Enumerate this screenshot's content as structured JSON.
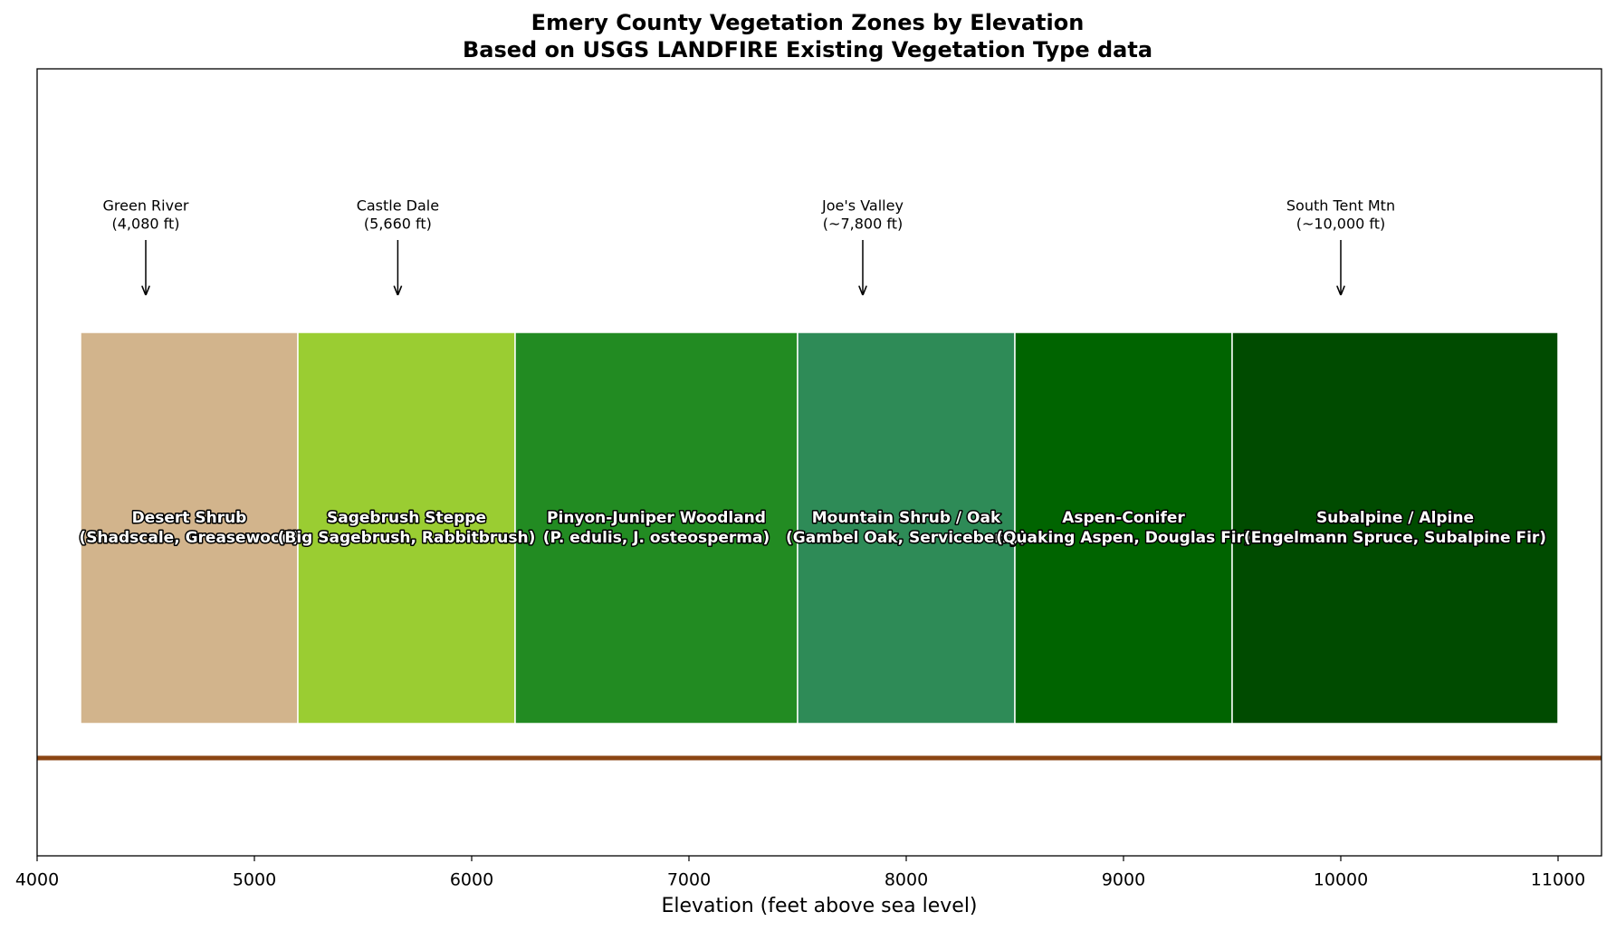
{
  "chart_data": {
    "type": "span",
    "title": "Emery County Vegetation Zones by Elevation",
    "subtitle": "Based on USGS LANDFIRE Existing Vegetation Type data",
    "x_label": "Elevation (feet above sea level)",
    "xlim": [
      4000,
      11200
    ],
    "xticks": [
      4000,
      5000,
      6000,
      7000,
      8000,
      9000,
      10000,
      11000
    ],
    "zones": [
      {
        "name": "Desert Shrub",
        "species": "(Shadscale, Greasewood)",
        "start": 4200,
        "end": 5200,
        "color": "#d2b48c"
      },
      {
        "name": "Sagebrush Steppe",
        "species": "(Big Sagebrush, Rabbitbrush)",
        "start": 5200,
        "end": 6200,
        "color": "#9acd32"
      },
      {
        "name": "Pinyon-Juniper Woodland",
        "species": "(P. edulis, J. osteosperma)",
        "start": 6200,
        "end": 7500,
        "color": "#228b22"
      },
      {
        "name": "Mountain Shrub / Oak",
        "species": "(Gambel Oak, Serviceberry)",
        "start": 7500,
        "end": 8500,
        "color": "#2e8b57"
      },
      {
        "name": "Aspen-Conifer",
        "species": "(Quaking Aspen, Douglas Fir)",
        "start": 8500,
        "end": 9500,
        "color": "#006400"
      },
      {
        "name": "Subalpine / Alpine",
        "species": "(Engelmann Spruce, Subalpine Fir)",
        "start": 9500,
        "end": 11000,
        "color": "#004b00"
      }
    ],
    "annotations": [
      {
        "label": "Green River",
        "note": "(4,080 ft)",
        "x": 4500
      },
      {
        "label": "Castle Dale",
        "note": "(5,660 ft)",
        "x": 5660
      },
      {
        "label": "Joe's Valley",
        "note": "(~7,800 ft)",
        "x": 7800
      },
      {
        "label": "South Tent Mtn",
        "note": "(~10,000 ft)",
        "x": 10000
      }
    ],
    "ground_color": "#8b4513"
  }
}
